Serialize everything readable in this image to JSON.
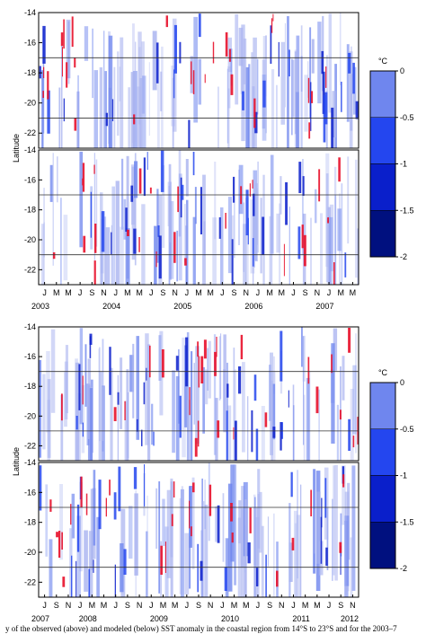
{
  "caption": "y of the observed (above) and modeled (below) SST anomaly in the coastal region from 14°S to 23°S and for the 2003–7",
  "colorbar": {
    "unit": "°C",
    "ticks": [
      "0",
      "-0.5",
      "-1",
      "-1.5",
      "-2"
    ],
    "colors": [
      "#aab4f0",
      "#6f86ee",
      "#2446ef",
      "#0a1fcb",
      "#00107f"
    ]
  },
  "chart_data": [
    {
      "type": "heatmap",
      "panel": "observed (above)",
      "period": "2003-2007",
      "ylabel": "Latitude",
      "ylim": [
        -23,
        -14
      ],
      "yticks": [
        -14,
        -16,
        -18,
        -20,
        -22
      ],
      "x_month_labels": [
        "J",
        "M",
        "M",
        "J",
        "S",
        "N",
        "J",
        "M",
        "M",
        "J",
        "S",
        "N",
        "J",
        "M",
        "M",
        "J",
        "S",
        "N",
        "J",
        "M",
        "M",
        "J",
        "S",
        "N",
        "J",
        "M",
        "M"
      ],
      "x_year_labels": [
        "2003",
        "2004",
        "2005",
        "2006",
        "2007"
      ],
      "reference_lines_latitude": [
        -17,
        -21
      ],
      "colorscale": {
        "min": -2,
        "max": 0,
        "unit": "°C"
      }
    },
    {
      "type": "heatmap",
      "panel": "modeled (below)",
      "period": "2003-2007",
      "ylabel": "Latitude",
      "ylim": [
        -23,
        -14
      ],
      "yticks": [
        -14,
        -16,
        -18,
        -20,
        -22
      ],
      "reference_lines_latitude": [
        -17,
        -21
      ],
      "colorscale": {
        "min": -2,
        "max": 0,
        "unit": "°C"
      }
    },
    {
      "type": "heatmap",
      "panel": "observed (above)",
      "period": "2007-2012",
      "ylabel": "Latitude",
      "ylim": [
        -23,
        -14
      ],
      "yticks": [
        -14,
        -16,
        -18,
        -20,
        -22
      ],
      "x_month_labels": [
        "J",
        "S",
        "N",
        "J",
        "M",
        "M",
        "J",
        "S",
        "N",
        "J",
        "M",
        "M",
        "J",
        "S",
        "N",
        "J",
        "M",
        "M",
        "J",
        "S",
        "N",
        "J",
        "M",
        "M",
        "J",
        "S",
        "N"
      ],
      "x_year_labels": [
        "2007",
        "2008",
        "2009",
        "2010",
        "2011",
        "2012"
      ],
      "reference_lines_latitude": [
        -17,
        -21
      ],
      "colorscale": {
        "min": -2,
        "max": 0,
        "unit": "°C"
      }
    },
    {
      "type": "heatmap",
      "panel": "modeled (below)",
      "period": "2007-2012",
      "ylabel": "Latitude",
      "ylim": [
        -23,
        -14
      ],
      "yticks": [
        -14,
        -16,
        -18,
        -20,
        -22
      ],
      "reference_lines_latitude": [
        -17,
        -21
      ],
      "colorscale": {
        "min": -2,
        "max": 0,
        "unit": "°C"
      }
    }
  ]
}
